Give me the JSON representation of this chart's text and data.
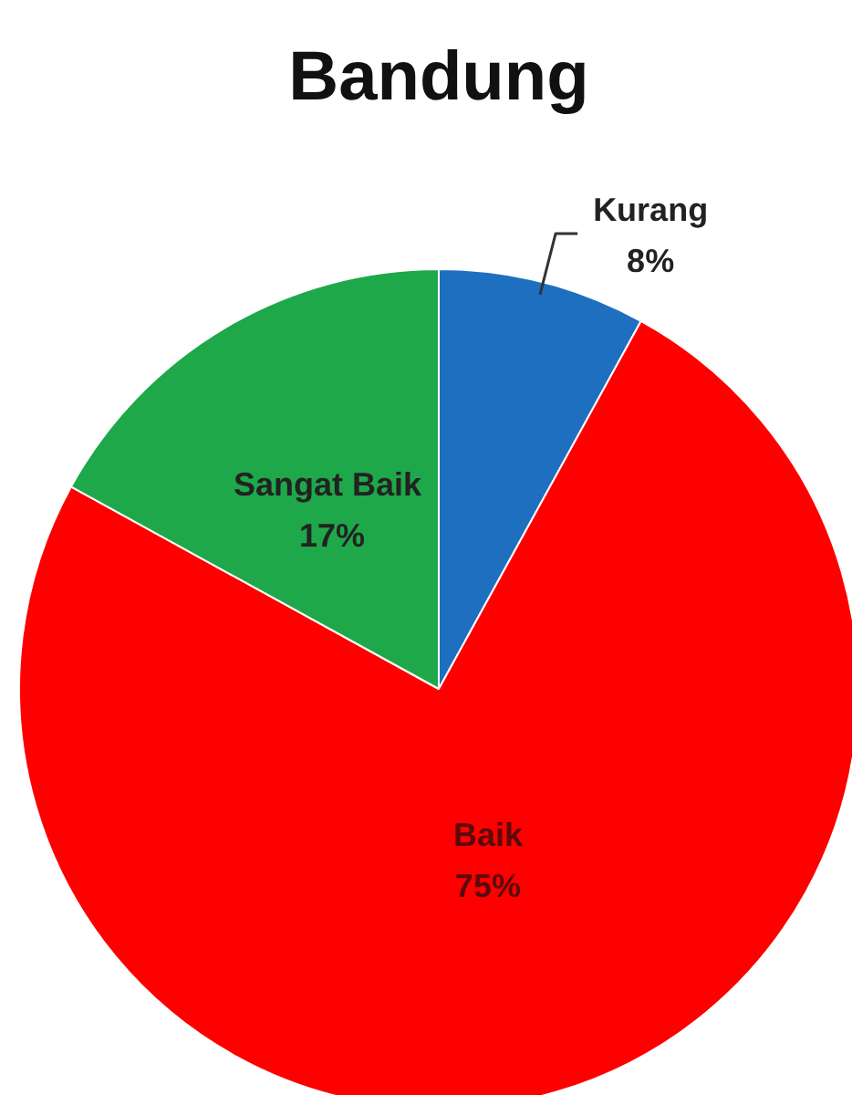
{
  "chart_data": {
    "type": "pie",
    "title": "Bandung",
    "categories": [
      "Kurang",
      "Baik",
      "Sangat  Baik"
    ],
    "values": [
      8,
      75,
      17
    ],
    "colors": [
      "#1f6fc0",
      "#ff0000",
      "#1ea84a"
    ],
    "value_labels": [
      "8%",
      "75%",
      "17%"
    ]
  }
}
